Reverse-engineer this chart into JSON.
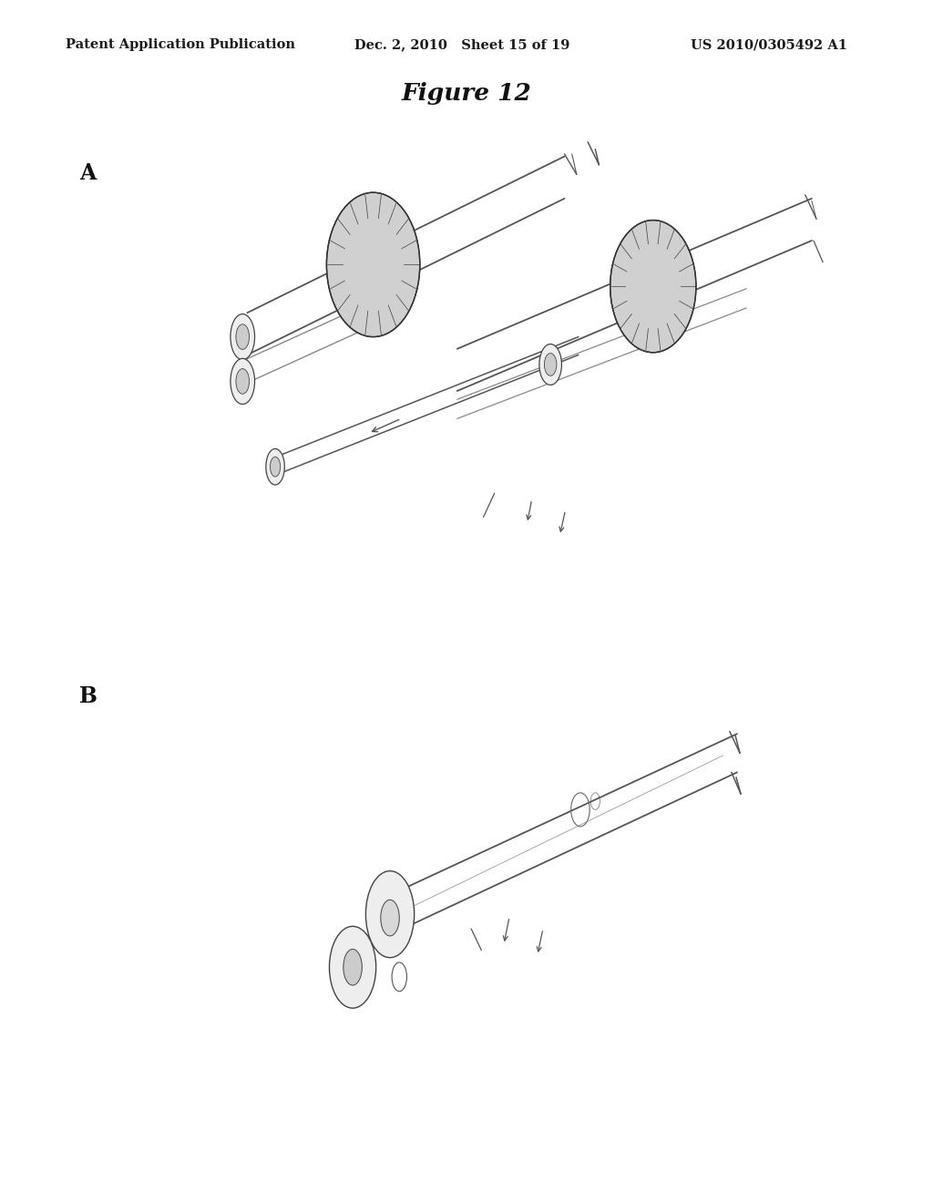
{
  "background_color": "#ffffff",
  "header_left": "Patent Application Publication",
  "header_middle": "Dec. 2, 2010   Sheet 15 of 19",
  "header_right": "US 2010/0305492 A1",
  "figure_title": "Figure 12",
  "label_A": "A",
  "label_B": "B",
  "sketch_color": "#555555",
  "light_color": "#888888",
  "gear_face_color": "#cccccc",
  "page_width": 10.24,
  "page_height": 13.2,
  "dpi": 100
}
